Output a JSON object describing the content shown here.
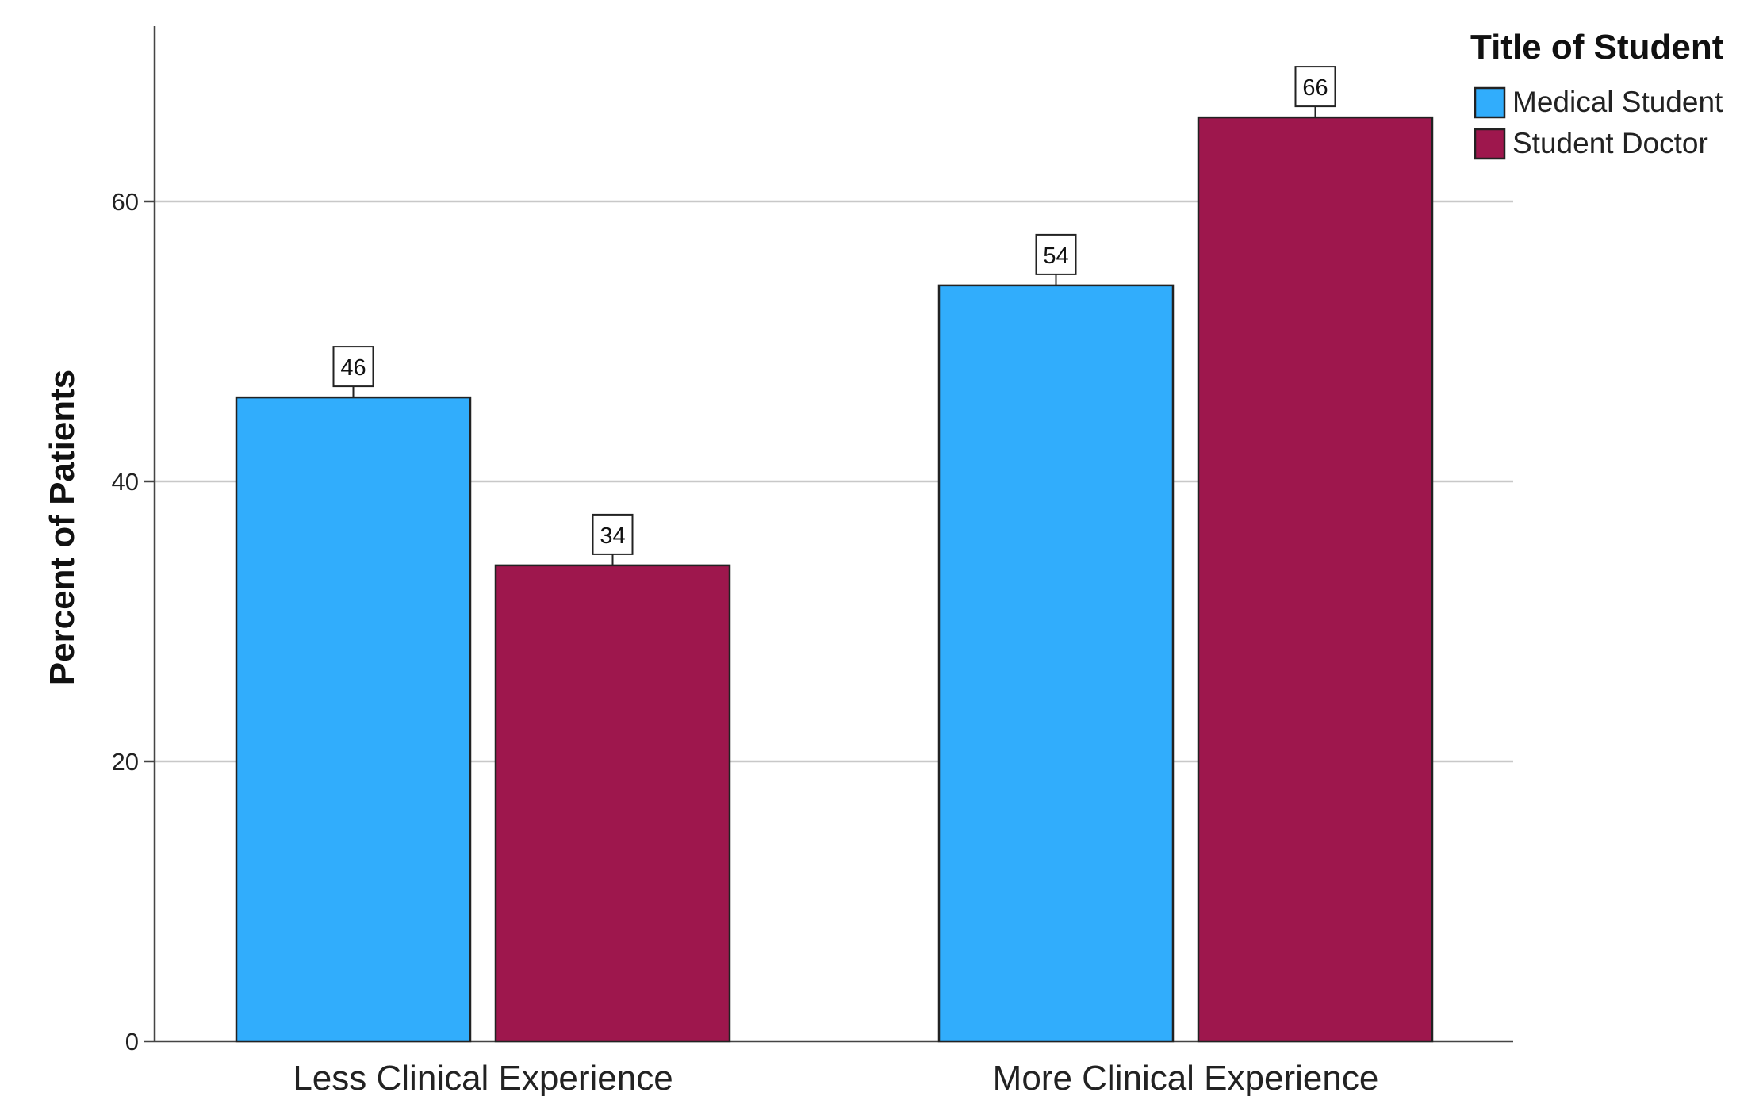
{
  "chart_data": {
    "type": "bar",
    "categories": [
      "Less Clinical Experience",
      "More Clinical Experience"
    ],
    "series": [
      {
        "name": "Medical Student",
        "values": [
          46,
          54
        ],
        "color": "#31ADFC"
      },
      {
        "name": "Student Doctor",
        "values": [
          34,
          66
        ],
        "color": "#9E174D"
      }
    ],
    "data_labels": [
      [
        "46",
        "54"
      ],
      [
        "34",
        "66"
      ]
    ],
    "ylabel": "Percent of Patients",
    "xlabel": "",
    "ylim": [
      0,
      72
    ],
    "yticks": [
      0,
      20,
      40,
      60
    ],
    "ytick_labels": [
      "0",
      "20",
      "40",
      "60"
    ],
    "grid": true,
    "legend": {
      "title": "Title of Student",
      "position": "top-right"
    }
  }
}
